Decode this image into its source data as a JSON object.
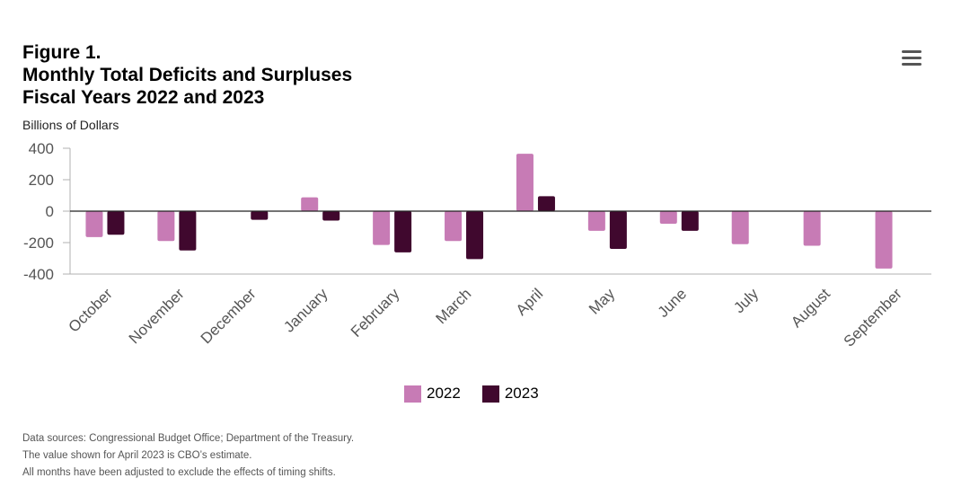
{
  "header": {
    "title_lines": [
      "Figure 1.",
      "Monthly Total Deficits and Surpluses",
      "Fiscal Years 2022 and 2023"
    ],
    "menu_icon": "hamburger-menu-icon"
  },
  "chart_data": {
    "type": "bar",
    "title": "Monthly Total Deficits and Surpluses, Fiscal Years 2022 and 2023",
    "ylabel": "Billions of Dollars",
    "xlabel": "",
    "ylim": [
      -400,
      400
    ],
    "yticks": [
      "400",
      "200",
      "0",
      "-200",
      "-400"
    ],
    "yticks_values": [
      400,
      200,
      0,
      -200,
      -400
    ],
    "categories": [
      "October",
      "November",
      "December",
      "January",
      "February",
      "March",
      "April",
      "May",
      "June",
      "July",
      "August",
      "September"
    ],
    "series": [
      {
        "name": "2022",
        "color": "#c77bb5",
        "values": [
          -165,
          -190,
          0,
          88,
          -215,
          -190,
          365,
          -125,
          -80,
          -210,
          -220,
          -365
        ]
      },
      {
        "name": "2023",
        "color": "#40082e",
        "values": [
          -150,
          -250,
          -55,
          -60,
          -262,
          -305,
          95,
          -240,
          -125,
          null,
          null,
          null
        ]
      }
    ],
    "legend": [
      "2022",
      "2023"
    ],
    "grid": false
  },
  "notes": [
    "Data sources: Congressional Budget Office; Department of the Treasury.",
    "The value shown for April 2023 is CBO’s estimate.",
    "All months have been adjusted to exclude the effects of timing shifts."
  ]
}
